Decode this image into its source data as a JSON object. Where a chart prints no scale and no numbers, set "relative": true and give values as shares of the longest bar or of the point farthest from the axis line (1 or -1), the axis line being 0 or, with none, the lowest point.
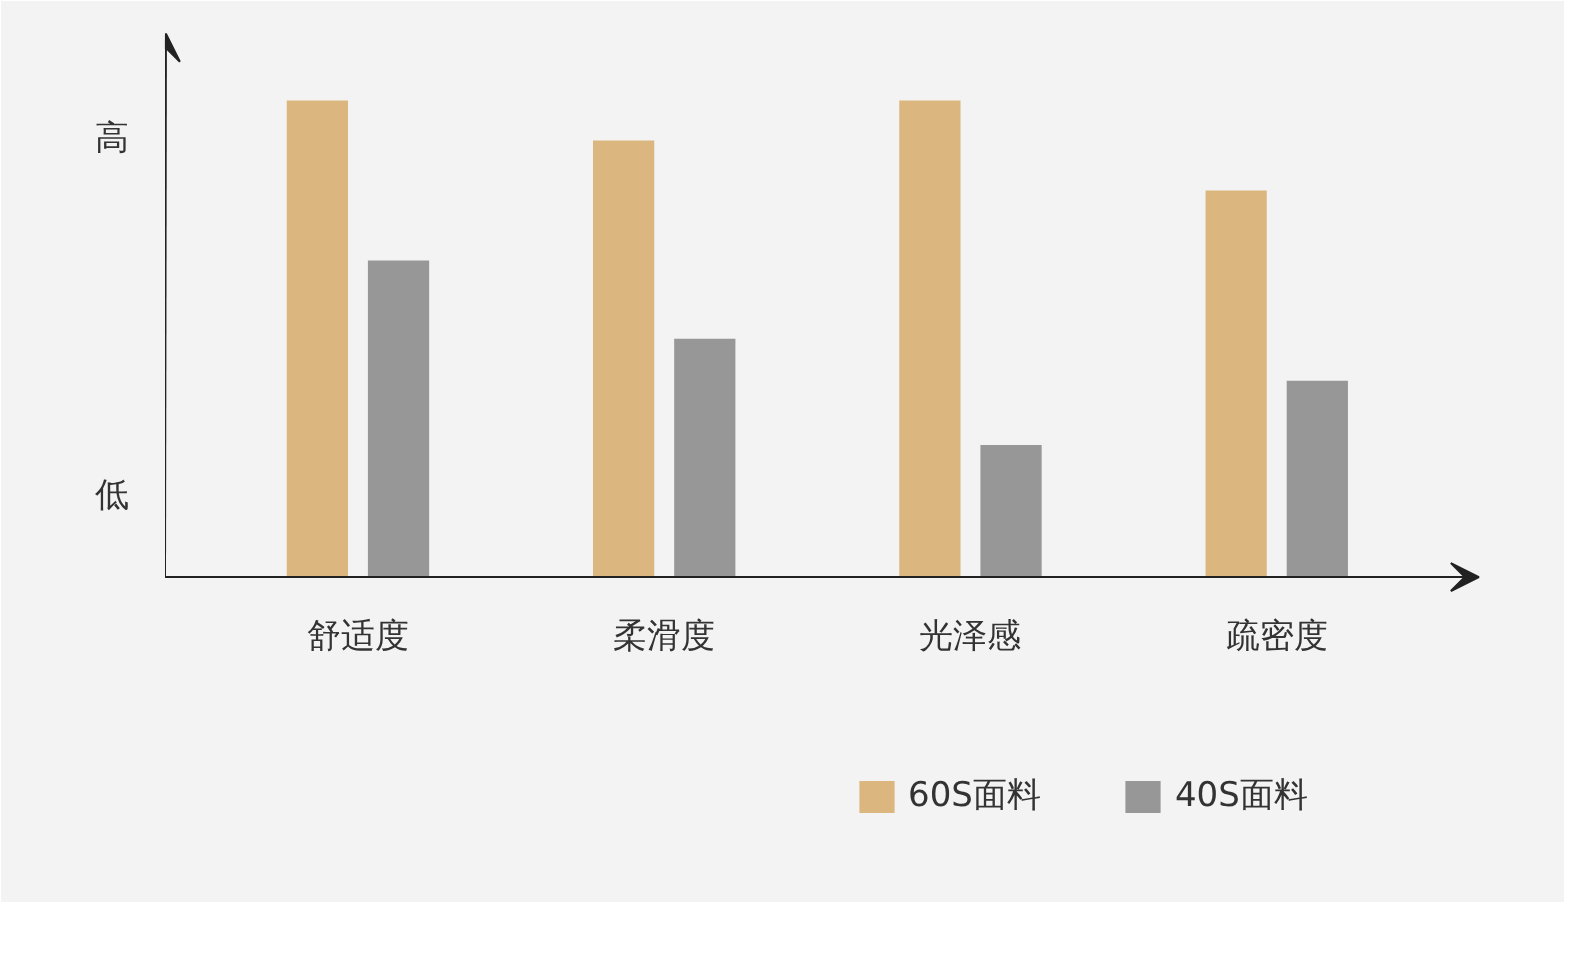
{
  "chart_data": {
    "type": "bar",
    "relative": true,
    "categories": [
      "舒适度",
      "柔滑度",
      "光泽感",
      "疏密度"
    ],
    "series": [
      {
        "name": "60S面料",
        "color": "#dbb77f",
        "values": [
          1,
          0.916,
          1,
          0.811
        ]
      },
      {
        "name": "40S面料",
        "color": "#979797",
        "values": [
          0.664,
          0.5,
          0.277,
          0.412
        ]
      }
    ],
    "annotations": [
      "高",
      "低"
    ],
    "legend": "bottom",
    "grid": false
  }
}
